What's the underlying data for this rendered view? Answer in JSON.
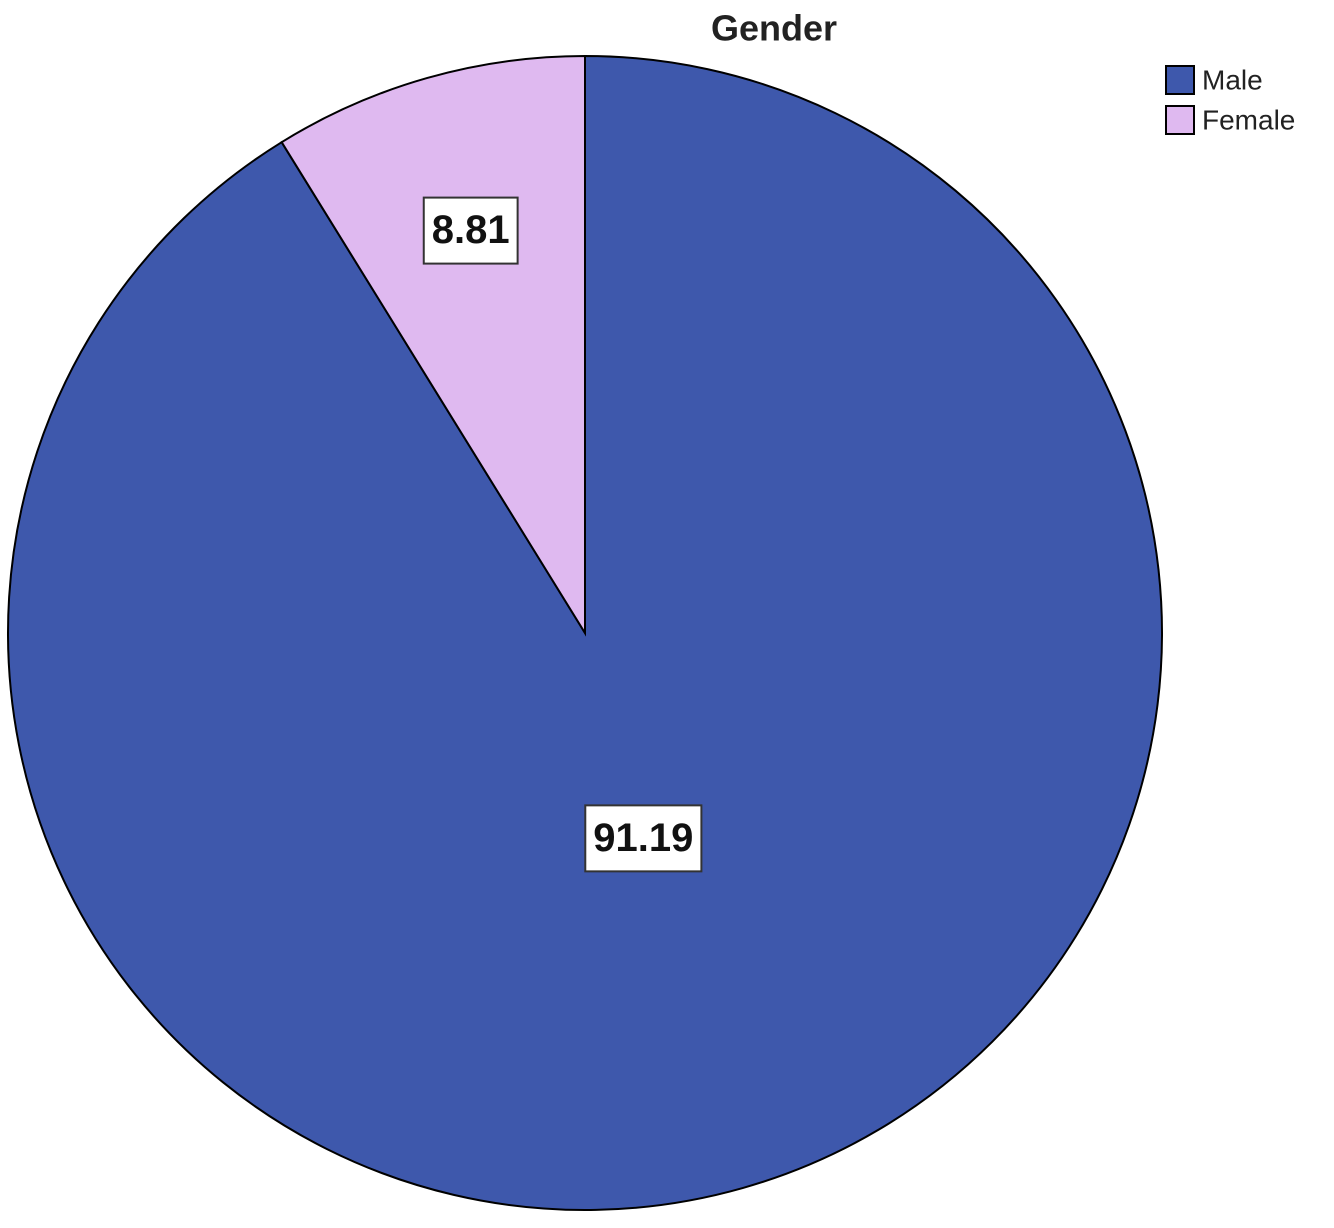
{
  "chart_data": {
    "type": "pie",
    "title": "Gender",
    "categories": [
      "Male",
      "Female"
    ],
    "values": [
      91.19,
      8.81
    ],
    "colors": [
      "#3e58ac",
      "#dfb9f0"
    ],
    "legend": "top-right"
  }
}
